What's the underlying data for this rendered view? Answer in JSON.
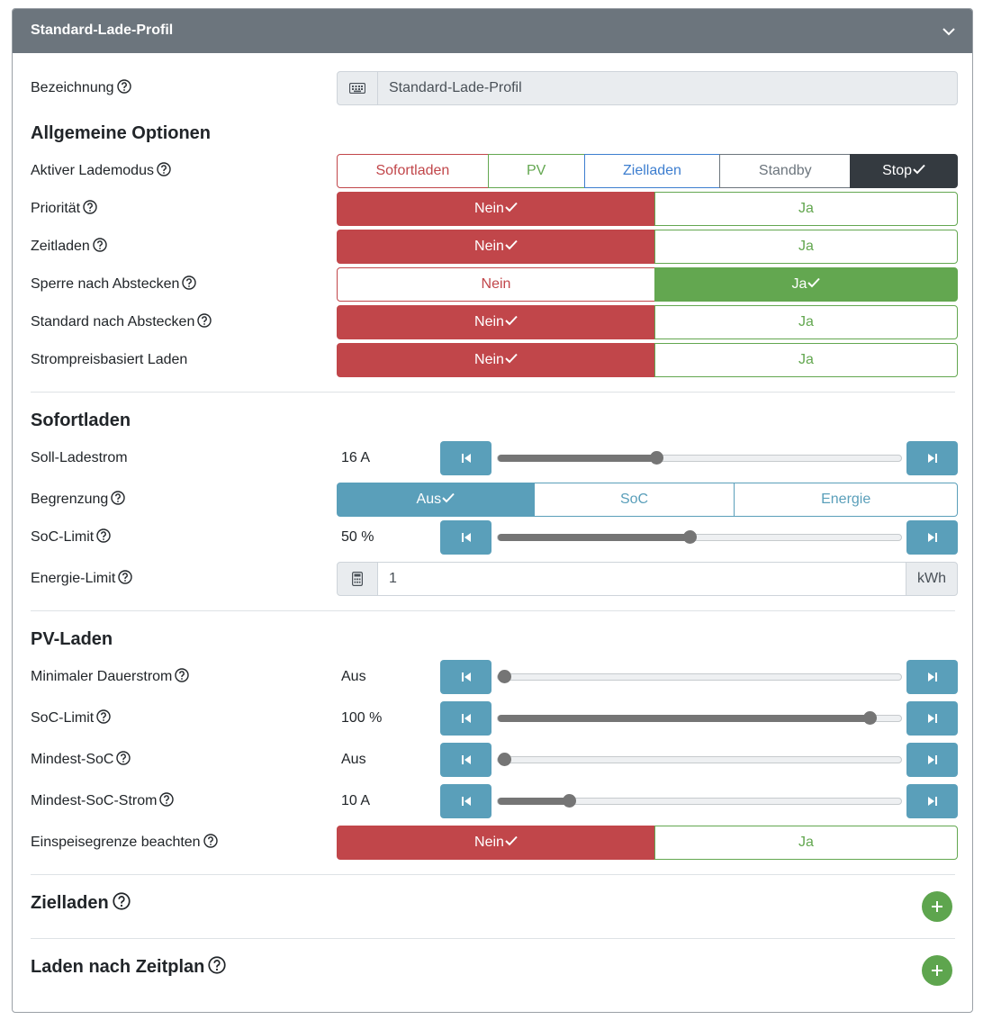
{
  "header": {
    "title": "Standard-Lade-Profil"
  },
  "bezeichnung": {
    "label": "Bezeichnung",
    "value": "Standard-Lade-Profil"
  },
  "allgemein": {
    "title": "Allgemeine Optionen",
    "lademodus": {
      "label": "Aktiver Lademodus",
      "options": [
        "Sofortladen",
        "PV",
        "Zielladen",
        "Standby",
        "Stop"
      ],
      "selected": "Stop"
    },
    "prioritaet": {
      "label": "Priorität",
      "no": "Nein",
      "yes": "Ja",
      "selected": "Nein"
    },
    "zeitladen": {
      "label": "Zeitladen",
      "no": "Nein",
      "yes": "Ja",
      "selected": "Nein"
    },
    "sperre": {
      "label": "Sperre nach Abstecken",
      "no": "Nein",
      "yes": "Ja",
      "selected": "Ja"
    },
    "standard": {
      "label": "Standard nach Abstecken",
      "no": "Nein",
      "yes": "Ja",
      "selected": "Nein"
    },
    "strompreis": {
      "label": "Strompreisbasiert Laden",
      "no": "Nein",
      "yes": "Ja",
      "selected": "Nein"
    }
  },
  "sofortladen": {
    "title": "Sofortladen",
    "soll_ladestrom": {
      "label": "Soll-Ladestrom",
      "value": "16 A",
      "fraction": 0.39
    },
    "begrenzung": {
      "label": "Begrenzung",
      "options": [
        "Aus",
        "SoC",
        "Energie"
      ],
      "selected": "Aus"
    },
    "soc_limit": {
      "label": "SoC-Limit",
      "value": "50 %",
      "fraction": 0.475
    },
    "energie_limit": {
      "label": "Energie-Limit",
      "value": "1",
      "unit": "kWh"
    }
  },
  "pvladen": {
    "title": "PV-Laden",
    "min_dauerstrom": {
      "label": "Minimaler Dauerstrom",
      "value": "Aus",
      "fraction": 0.0
    },
    "soc_limit": {
      "label": "SoC-Limit",
      "value": "100 %",
      "fraction": 0.935
    },
    "mindest_soc": {
      "label": "Mindest-SoC",
      "value": "Aus",
      "fraction": 0.0
    },
    "mindest_soc_strom": {
      "label": "Mindest-SoC-Strom",
      "value": "10 A",
      "fraction": 0.165
    },
    "einspeisegrenze": {
      "label": "Einspeisegrenze beachten",
      "no": "Nein",
      "yes": "Ja",
      "selected": "Nein"
    }
  },
  "zielladen": {
    "title": "Zielladen"
  },
  "zeitplan": {
    "title": "Laden nach Zeitplan"
  },
  "colors": {
    "header": "#6c757d",
    "danger": "#c1464a",
    "success": "#63a750",
    "info": "#5a9fba",
    "primary": "#3d7ecf",
    "dark": "#343a40"
  },
  "icons": {
    "chevron": "chevron-down-icon",
    "help": "question-circle-icon",
    "keyboard": "keyboard-icon",
    "calculator": "calculator-icon",
    "step_back": "step-backward-icon",
    "step_forward": "step-forward-icon",
    "check": "check-icon",
    "plus": "plus-icon"
  }
}
